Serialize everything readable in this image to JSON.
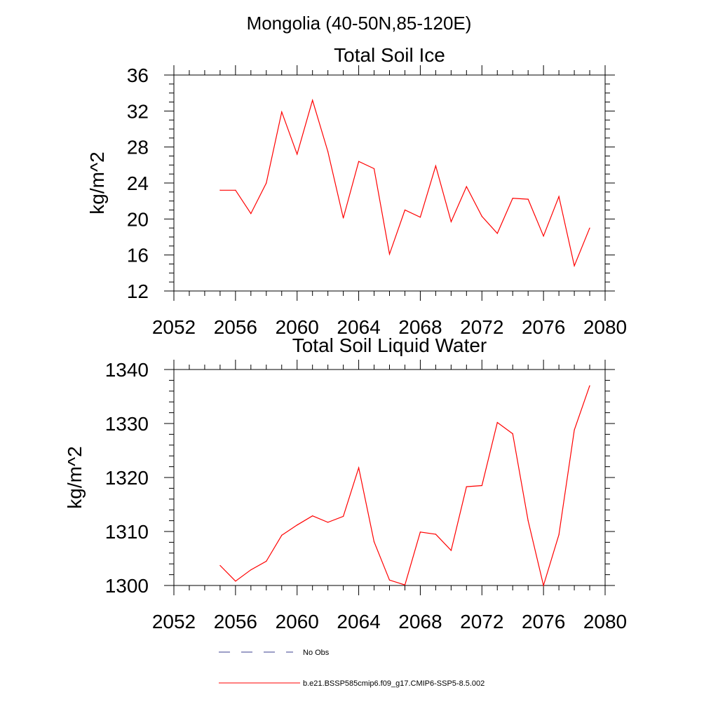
{
  "figure_title": "Mongolia (40-50N,85-120E)",
  "colors": {
    "model_line": "#ff0000",
    "obs_line": "#3b3f8f",
    "axis": "#000000",
    "background": "#ffffff"
  },
  "legend": {
    "obs_label": "No Obs",
    "model_label": "b.e21.BSSP585cmip6.f09_g17.CMIP6-SSP5-8.5.002"
  },
  "chart_data": [
    {
      "type": "line",
      "title": "Total Soil Ice",
      "xlabel": "",
      "ylabel": "kg/m^2",
      "xlim": [
        2052,
        2080
      ],
      "ylim": [
        12,
        36
      ],
      "xticks": [
        2052,
        2056,
        2060,
        2064,
        2068,
        2072,
        2076,
        2080
      ],
      "yticks": [
        12,
        16,
        20,
        24,
        28,
        32,
        36
      ],
      "grid": false,
      "legend_position": "bottom",
      "series": [
        {
          "name": "b.e21.BSSP585cmip6.f09_g17.CMIP6-SSP5-8.5.002",
          "x": [
            2055,
            2056,
            2057,
            2058,
            2059,
            2060,
            2061,
            2062,
            2063,
            2064,
            2065,
            2066,
            2067,
            2068,
            2069,
            2070,
            2071,
            2072,
            2073,
            2074,
            2075,
            2076,
            2077,
            2078,
            2079
          ],
          "values": [
            23.2,
            23.2,
            20.6,
            24.0,
            31.9,
            27.2,
            33.2,
            27.5,
            20.1,
            26.4,
            25.6,
            16.1,
            21.0,
            20.2,
            25.9,
            19.7,
            23.6,
            20.3,
            18.4,
            22.3,
            22.2,
            18.1,
            22.5,
            14.8,
            19.0
          ]
        }
      ]
    },
    {
      "type": "line",
      "title": "Total Soil Liquid Water",
      "xlabel": "",
      "ylabel": "kg/m^2",
      "xlim": [
        2052,
        2080
      ],
      "ylim": [
        1300,
        1340
      ],
      "xticks": [
        2052,
        2056,
        2060,
        2064,
        2068,
        2072,
        2076,
        2080
      ],
      "yticks": [
        1300,
        1310,
        1320,
        1330,
        1340
      ],
      "grid": false,
      "legend_position": "bottom",
      "series": [
        {
          "name": "b.e21.BSSP585cmip6.f09_g17.CMIP6-SSP5-8.5.002",
          "x": [
            2055,
            2056,
            2057,
            2058,
            2059,
            2060,
            2061,
            2062,
            2063,
            2064,
            2065,
            2066,
            2067,
            2068,
            2069,
            2070,
            2071,
            2072,
            2073,
            2074,
            2075,
            2076,
            2077,
            2078,
            2079
          ],
          "values": [
            1303.7,
            1300.8,
            1302.9,
            1304.5,
            1309.3,
            1311.2,
            1312.9,
            1311.7,
            1312.8,
            1321.8,
            1308.1,
            1301.0,
            1300.1,
            1309.9,
            1309.5,
            1306.5,
            1318.3,
            1318.5,
            1330.2,
            1328.1,
            1312.0,
            1300.0,
            1309.4,
            1328.8,
            1337.0
          ]
        }
      ]
    }
  ]
}
